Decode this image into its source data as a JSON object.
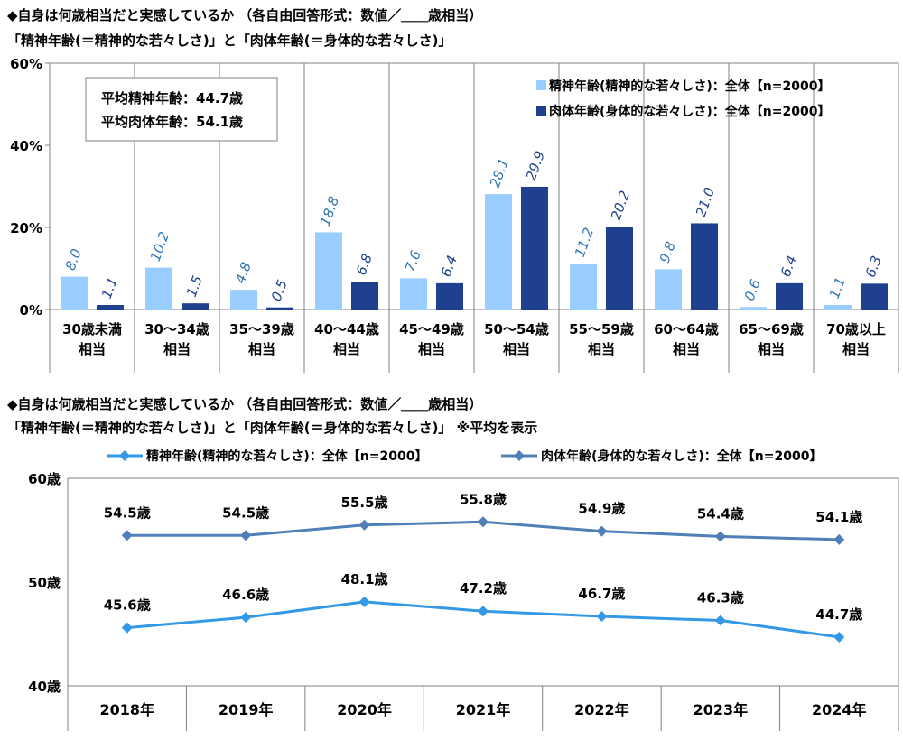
{
  "chart1": {
    "title_line1": "◆自身は何歳相当だと実感しているか （各自由回答形式：数値／＿＿歳相当）",
    "title_line2": "「精神年齢(＝精神的な若々しさ)」と「肉体年齢(＝身体的な若々しさ)」",
    "avg_text_1": "平均精神年齢：44.7歳",
    "avg_text_2": "平均肉体年齢：54.1歳",
    "y_ticks": [
      "0%",
      "20%",
      "40%",
      "60%"
    ]
  },
  "chart2": {
    "title_line1": "◆自身は何歳相当だと実感しているか （各自由回答形式：数値／＿＿歳相当）",
    "title_line2": "「精神年齢(＝精神的な若々しさ)」と「肉体年齢(＝身体的な若々しさ)」 ※平均を表示",
    "y_ticks": [
      "40歳",
      "50歳",
      "60歳"
    ]
  },
  "colors": {
    "bar_mental": "#99ccff",
    "bar_physical": "#1f3f8f",
    "line_mental": "#3399e6",
    "line_physical": "#4f7fb8",
    "bar_label_mental": "#2e75b6",
    "bar_label_physical": "#1f3f8f"
  },
  "chart_data": [
    {
      "type": "bar",
      "categories": [
        "30歳未満\n相当",
        "30～34歳\n相当",
        "35～39歳\n相当",
        "40～44歳\n相当",
        "45～49歳\n相当",
        "50～54歳\n相当",
        "55～59歳\n相当",
        "60～64歳\n相当",
        "65～69歳\n相当",
        "70歳以上\n相当"
      ],
      "series": [
        {
          "name": "精神年齢(精神的な若々しさ)：全体【n=2000】",
          "values": [
            8.0,
            10.2,
            4.8,
            18.8,
            7.6,
            28.1,
            11.2,
            9.8,
            0.6,
            1.1
          ]
        },
        {
          "name": "肉体年齢(身体的な若々しさ)：全体【n=2000】",
          "values": [
            1.1,
            1.5,
            0.5,
            6.8,
            6.4,
            29.9,
            20.2,
            21.0,
            6.4,
            6.3
          ]
        }
      ],
      "ylim": [
        0,
        60
      ],
      "y_unit": "%",
      "grid": false,
      "legend": "top-right"
    },
    {
      "type": "line",
      "categories": [
        "2018年",
        "2019年",
        "2020年",
        "2021年",
        "2022年",
        "2023年",
        "2024年"
      ],
      "series": [
        {
          "name": "精神年齢(精神的な若々しさ)：全体【n=2000】",
          "values": [
            45.6,
            46.6,
            48.1,
            47.2,
            46.7,
            46.3,
            44.7
          ]
        },
        {
          "name": "肉体年齢(身体的な若々しさ)：全体【n=2000】",
          "values": [
            54.5,
            54.5,
            55.5,
            55.8,
            54.9,
            54.4,
            54.1
          ]
        }
      ],
      "value_suffix": "歳",
      "ylim": [
        40,
        60
      ],
      "grid": false,
      "legend": "top"
    }
  ]
}
